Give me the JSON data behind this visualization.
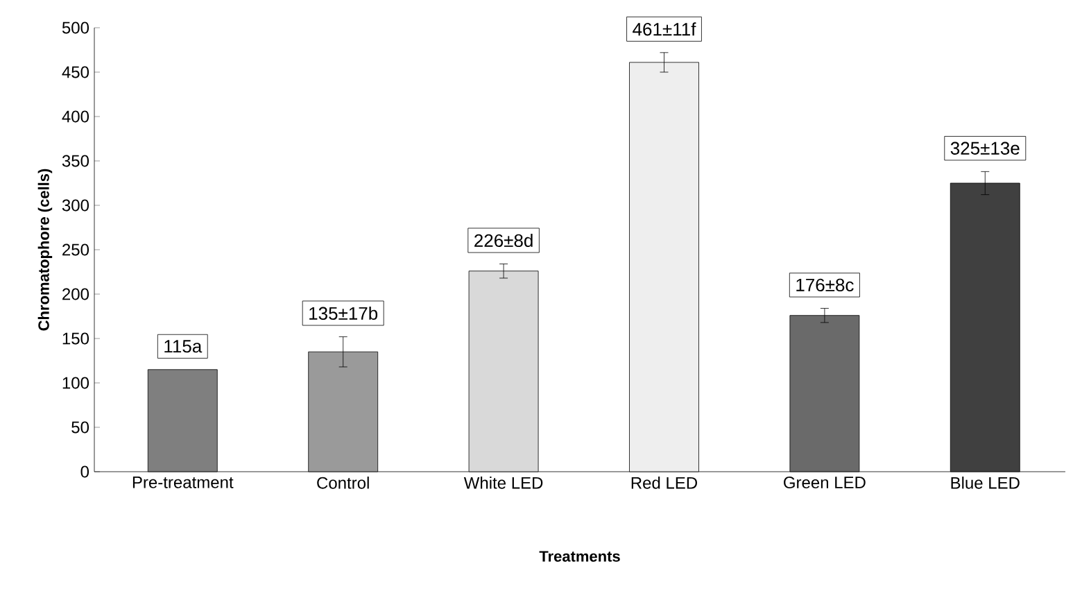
{
  "chart_data": {
    "type": "bar",
    "xlabel": "Treatments",
    "ylabel": "Chromatophore (cells)",
    "categories": [
      "Pre-treatment",
      "Control",
      "White LED",
      "Red LED",
      "Green LED",
      "Blue LED"
    ],
    "values": [
      115,
      135,
      226,
      461,
      176,
      325
    ],
    "errors": [
      null,
      17,
      8,
      11,
      8,
      13
    ],
    "value_labels": [
      "115a",
      "135±17b",
      "226±8d",
      "461±11f",
      "176±8c",
      "325±13e"
    ],
    "colors": [
      "#7f7f7f",
      "#9a9a9a",
      "#d9d9d9",
      "#eeeeee",
      "#6a6a6a",
      "#404040"
    ],
    "ylim": [
      0,
      500
    ],
    "yticks": [
      0,
      50,
      100,
      150,
      200,
      250,
      300,
      350,
      400,
      450,
      500
    ],
    "grid": false
  }
}
